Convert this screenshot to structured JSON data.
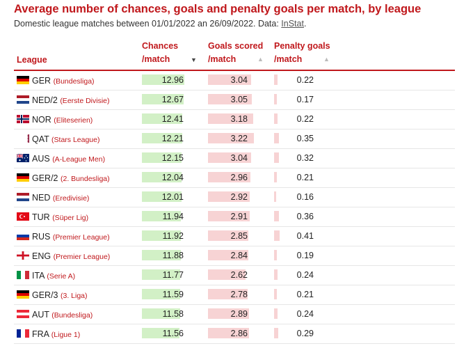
{
  "title": "Average number of chances, goals and penalty goals per match, by league",
  "subtitle_prefix": "Domestic league matches between 01/01/2022 an 26/09/2022. Data: ",
  "subtitle_source": "InStat",
  "subtitle_suffix": ".",
  "headers": {
    "league": "League",
    "chances_1": "Chances",
    "chances_2": "/match",
    "goals_1": "Goals scored",
    "goals_2": "/match",
    "penalty_1": "Penalty goals",
    "penalty_2": "/match"
  },
  "chart_data": {
    "type": "table",
    "title": "Average number of chances, goals and penalty goals per match, by league",
    "columns": [
      "League",
      "Chances /match",
      "Goals scored /match",
      "Penalty goals /match"
    ],
    "sort": {
      "column": "Chances /match",
      "direction": "descending"
    },
    "bar_max": {
      "chances": 12.96,
      "goals": 3.22,
      "penalty": 3.22
    },
    "rows": [
      {
        "code": "GER",
        "league": "(Bundesliga)",
        "flag": "germany-flag-icon",
        "chances": 12.96,
        "goals": 3.04,
        "penalty": 0.22
      },
      {
        "code": "NED/2",
        "league": "(Eerste Divisie)",
        "flag": "netherlands-flag-icon",
        "chances": 12.67,
        "goals": 3.05,
        "penalty": 0.17
      },
      {
        "code": "NOR",
        "league": "(Eliteserien)",
        "flag": "norway-flag-icon",
        "chances": 12.41,
        "goals": 3.18,
        "penalty": 0.22
      },
      {
        "code": "QAT",
        "league": "(Stars League)",
        "flag": "qatar-flag-icon",
        "chances": 12.21,
        "goals": 3.22,
        "penalty": 0.35
      },
      {
        "code": "AUS",
        "league": "(A-League Men)",
        "flag": "australia-flag-icon",
        "chances": 12.15,
        "goals": 3.04,
        "penalty": 0.32
      },
      {
        "code": "GER/2",
        "league": "(2. Bundesliga)",
        "flag": "germany-flag-icon",
        "chances": 12.04,
        "goals": 2.96,
        "penalty": 0.21
      },
      {
        "code": "NED",
        "league": "(Eredivisie)",
        "flag": "netherlands-flag-icon",
        "chances": 12.01,
        "goals": 2.92,
        "penalty": 0.16
      },
      {
        "code": "TUR",
        "league": "(Süper Lig)",
        "flag": "turkey-flag-icon",
        "chances": 11.94,
        "goals": 2.91,
        "penalty": 0.36
      },
      {
        "code": "RUS",
        "league": "(Premier League)",
        "flag": "russia-flag-icon",
        "chances": 11.92,
        "goals": 2.85,
        "penalty": 0.41
      },
      {
        "code": "ENG",
        "league": "(Premier League)",
        "flag": "england-flag-icon",
        "chances": 11.88,
        "goals": 2.84,
        "penalty": 0.19
      },
      {
        "code": "ITA",
        "league": "(Serie A)",
        "flag": "italy-flag-icon",
        "chances": 11.77,
        "goals": 2.62,
        "penalty": 0.24
      },
      {
        "code": "GER/3",
        "league": "(3. Liga)",
        "flag": "germany-flag-icon",
        "chances": 11.59,
        "goals": 2.78,
        "penalty": 0.21
      },
      {
        "code": "AUT",
        "league": "(Bundesliga)",
        "flag": "austria-flag-icon",
        "chances": 11.58,
        "goals": 2.89,
        "penalty": 0.24
      },
      {
        "code": "FRA",
        "league": "(Ligue 1)",
        "flag": "france-flag-icon",
        "chances": 11.56,
        "goals": 2.86,
        "penalty": 0.29
      }
    ]
  },
  "colors": {
    "accent": "#c0181c",
    "chances_bar": "#d2f0c6",
    "goals_bar": "#f7d3d4",
    "penalty_bar": "#f7d3d4"
  }
}
